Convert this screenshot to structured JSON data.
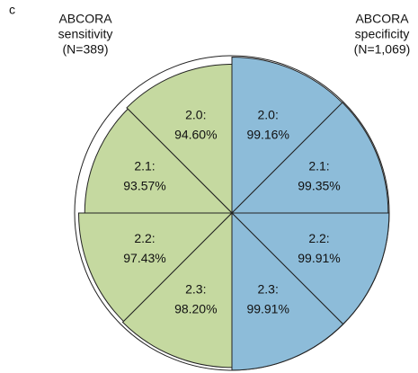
{
  "chart_data": {
    "type": "rose",
    "panel_label": "c",
    "categories": [
      "2.0:",
      "2.1:",
      "2.2:",
      "2.3:"
    ],
    "rlim": [
      0,
      100
    ],
    "series": [
      {
        "label": [
          "ABCORA",
          "sensitivity",
          "(N=389)"
        ],
        "side": "left",
        "color": "#c5d9a0",
        "values": [
          94.6,
          93.57,
          97.43,
          98.2
        ],
        "value_labels": [
          "94.60%",
          "93.57%",
          "97.43%",
          "98.20%"
        ]
      },
      {
        "label": [
          "ABCORA",
          "specificity",
          "(N=1,069)"
        ],
        "side": "right",
        "color": "#8dbcd9",
        "values": [
          99.16,
          99.35,
          99.91,
          99.91
        ],
        "value_labels": [
          "99.16%",
          "99.35%",
          "99.91%",
          "99.91%"
        ]
      }
    ]
  }
}
